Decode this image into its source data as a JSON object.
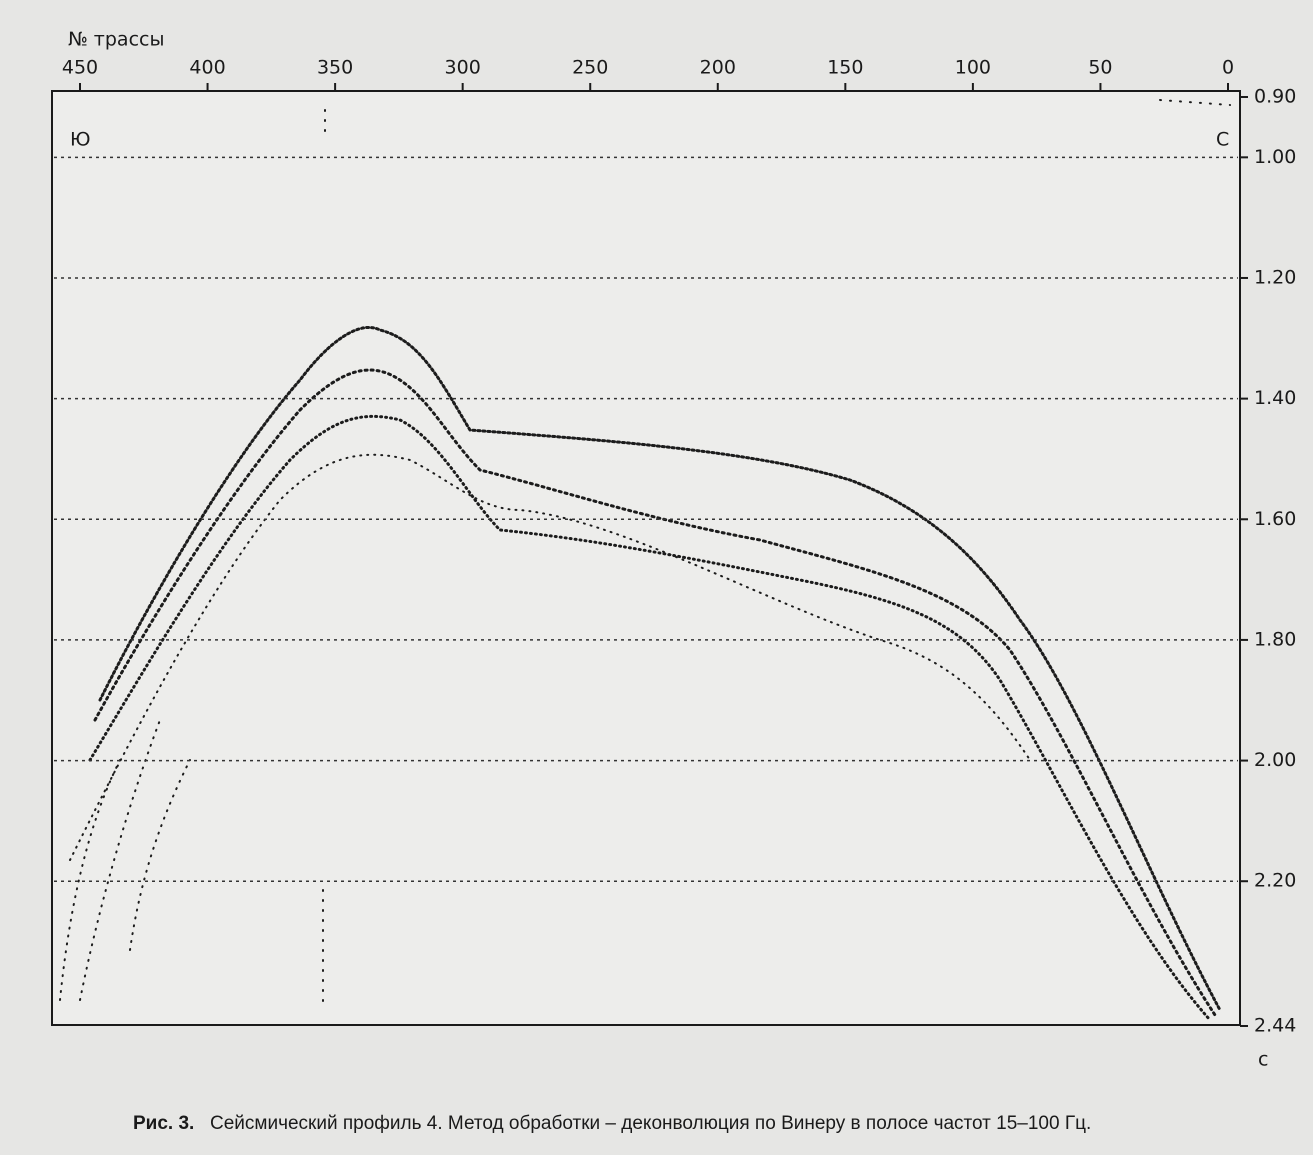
{
  "figure": {
    "x_axis": {
      "label": "№ трассы",
      "ticks": [
        450,
        400,
        350,
        300,
        250,
        200,
        150,
        100,
        50,
        0
      ]
    },
    "y_axis": {
      "unit": "с",
      "ticks": [
        {
          "value": 0.9,
          "label": "0.90"
        },
        {
          "value": 1.0,
          "label": "1.00"
        },
        {
          "value": 1.2,
          "label": "1.20"
        },
        {
          "value": 1.4,
          "label": "1.40"
        },
        {
          "value": 1.6,
          "label": "1.60"
        },
        {
          "value": 1.8,
          "label": "1.80"
        },
        {
          "value": 2.0,
          "label": "2.00"
        },
        {
          "value": 2.2,
          "label": "2.20"
        },
        {
          "value": 2.44,
          "label": "2.44"
        }
      ]
    },
    "grid": true,
    "annotations": {
      "left": "Ю",
      "right": "С"
    },
    "caption": {
      "label": "Рис. 3.",
      "text": "Сейсмический профиль 4. Метод обработки – деконволюция по Винеру в полосе частот 15–100 Гц."
    }
  }
}
